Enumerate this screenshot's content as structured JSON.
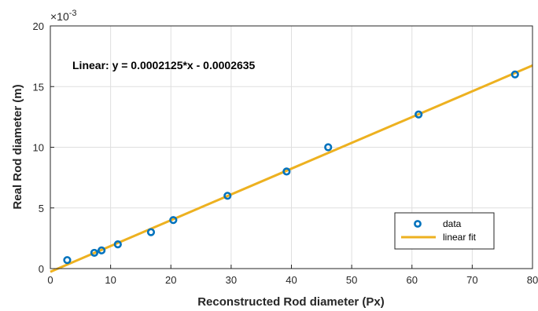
{
  "chart_data": {
    "type": "scatter",
    "xlabel": "Reconstructed Rod diameter (Px)",
    "ylabel": "Real Rod diameter (m)",
    "xlim": [
      0,
      80
    ],
    "ylim": [
      0,
      20
    ],
    "xticks": [
      "0",
      "10",
      "20",
      "30",
      "40",
      "50",
      "60",
      "70",
      "80"
    ],
    "yticks": [
      "0",
      "5",
      "10",
      "15",
      "20"
    ],
    "y_multiplier": {
      "base": "×10",
      "exponent": "-3"
    },
    "grid": true,
    "legend_position": "bottom-right",
    "annotation": "Linear:  y = 0.0002125*x - 0.0002635",
    "series": [
      {
        "name": "data",
        "type": "scatter",
        "x": [
          2.8,
          7.3,
          8.5,
          11.2,
          16.7,
          20.4,
          29.4,
          39.2,
          46.1,
          61.1,
          77.1
        ],
        "y": [
          0.7,
          1.3,
          1.5,
          2.0,
          3.0,
          4.0,
          6.0,
          8.0,
          10.0,
          12.7,
          16.0
        ],
        "color": "#0072BD"
      },
      {
        "name": "linear fit",
        "type": "line",
        "x": [
          0,
          80
        ],
        "y": [
          -0.2635,
          16.7365
        ],
        "color": "#EDB120"
      }
    ]
  }
}
